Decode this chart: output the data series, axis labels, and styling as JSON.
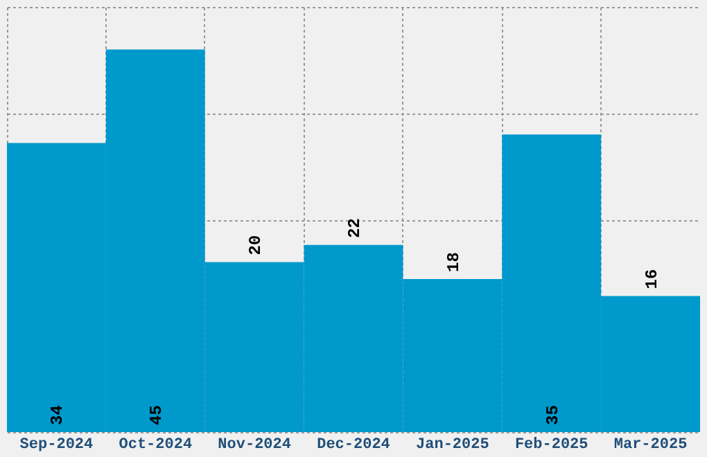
{
  "chart_data": {
    "type": "bar",
    "categories": [
      "Sep-2024",
      "Oct-2024",
      "Nov-2024",
      "Dec-2024",
      "Jan-2025",
      "Feb-2025",
      "Mar-2025"
    ],
    "values": [
      34,
      45,
      20,
      22,
      18,
      35,
      16
    ],
    "color": "#0099cc",
    "ylim": [
      0,
      50
    ],
    "yticks": [
      0,
      12.5,
      25,
      37.5,
      50
    ],
    "tick_labels": "x",
    "grid": true,
    "data_labels": true
  }
}
